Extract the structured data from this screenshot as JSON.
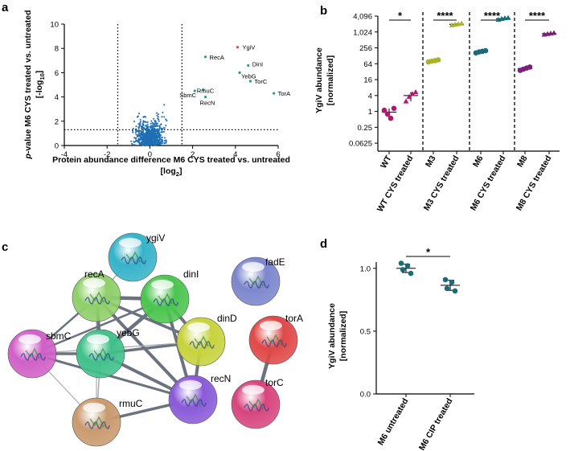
{
  "panel_letters": {
    "a": "a",
    "b": "b",
    "c": "c",
    "d": "d"
  },
  "chart_data": [
    {
      "id": "a",
      "type": "scatter",
      "title": "",
      "xlabel_line1": "Protein abundance difference M6 CYS treated vs. untreated",
      "xlabel_line2": "[log",
      "xlabel_sub": "2",
      "xlabel_close": "]",
      "ylabel_line1_italic": "p",
      "ylabel_line1_rest": "-value M6 CYS treated vs. untreated",
      "ylabel_line2": "[-log",
      "ylabel_sub": "10",
      "ylabel_close": "]",
      "xlim": [
        -4,
        6
      ],
      "ylim": [
        0,
        10
      ],
      "xticks": [
        "-4",
        "-2",
        "0",
        "2",
        "4",
        "6"
      ],
      "yticks": [
        "0",
        "2",
        "4",
        "6",
        "8",
        "10"
      ],
      "thresholds": {
        "x_left": -1.5,
        "x_right": 1.5,
        "y": 1.3
      },
      "bulk_color": "#1f6fb5",
      "labeled_points": [
        {
          "label": "YgiV",
          "x": 4.1,
          "y": 8.1,
          "color": "#e8453c"
        },
        {
          "label": "RecA",
          "x": 2.6,
          "y": 7.3,
          "color": "#1f9e8f"
        },
        {
          "label": "DinI",
          "x": 4.6,
          "y": 6.6,
          "color": "#1f9e8f"
        },
        {
          "label": "YebG",
          "x": 4.2,
          "y": 6.0,
          "color": "#1f9e8f"
        },
        {
          "label": "TorC",
          "x": 4.7,
          "y": 5.3,
          "color": "#1f9e8f"
        },
        {
          "label": "RmuC",
          "x": 2.5,
          "y": 4.6,
          "color": "#1f9e8f"
        },
        {
          "label": "SbmC",
          "x": 2.1,
          "y": 4.5,
          "color": "#1f9e8f"
        },
        {
          "label": "RecN",
          "x": 2.6,
          "y": 4.0,
          "color": "#1f9e8f"
        },
        {
          "label": "TorA",
          "x": 5.8,
          "y": 4.3,
          "color": "#1f9e8f"
        }
      ]
    },
    {
      "id": "b",
      "type": "scatter",
      "ylabel_line1": "YgiV abundance",
      "ylabel_line2": "[normalized]",
      "yscale": "log2",
      "ylim": [
        0.03125,
        4096
      ],
      "yticks": [
        {
          "label": "4,096",
          "value": 4096
        },
        {
          "label": "1,024",
          "value": 1024
        },
        {
          "label": "256",
          "value": 256
        },
        {
          "label": "64",
          "value": 64
        },
        {
          "label": "16",
          "value": 16
        },
        {
          "label": "4",
          "value": 4
        },
        {
          "label": "1",
          "value": 1
        },
        {
          "label": "0.25",
          "value": 0.25
        },
        {
          "label": "0.0625",
          "value": 0.0625
        }
      ],
      "categories": [
        "WT",
        "WT CYS treated",
        "M3",
        "M3 CYS treated",
        "M6",
        "M6 CYS treated",
        "M8",
        "M8 CYS treated"
      ],
      "groups": [
        {
          "name": "WT",
          "color": "#b0186e",
          "marker": "circle",
          "values": [
            1.1,
            0.8,
            0.55,
            1.3
          ]
        },
        {
          "name": "WT CYS treated",
          "color": "#b0186e",
          "marker": "triangle",
          "values": [
            2.4,
            3.6,
            4.6,
            5.4
          ]
        },
        {
          "name": "M3",
          "color": "#a9b22c",
          "marker": "circle",
          "values": [
            75,
            80,
            84,
            90
          ]
        },
        {
          "name": "M3 CYS treated",
          "color": "#a9b22c",
          "marker": "triangle",
          "values": [
            1850,
            1950,
            2050,
            2150
          ]
        },
        {
          "name": "M6",
          "color": "#1a6b79",
          "marker": "circle",
          "values": [
            165,
            180,
            190,
            200
          ]
        },
        {
          "name": "M6 CYS treated",
          "color": "#1a6b79",
          "marker": "triangle",
          "values": [
            3000,
            3200,
            3400,
            3500
          ]
        },
        {
          "name": "M8",
          "color": "#7a1f7a",
          "marker": "circle",
          "values": [
            36,
            40,
            44,
            48
          ]
        },
        {
          "name": "M8 CYS treated",
          "color": "#7a1f7a",
          "marker": "triangle",
          "values": [
            820,
            860,
            900,
            940
          ]
        }
      ],
      "significance": [
        {
          "pair": [
            0,
            1
          ],
          "label": "*"
        },
        {
          "pair": [
            2,
            3
          ],
          "label": "****"
        },
        {
          "pair": [
            4,
            5
          ],
          "label": "****"
        },
        {
          "pair": [
            6,
            7
          ],
          "label": "****"
        }
      ]
    },
    {
      "id": "d",
      "type": "scatter",
      "ylabel_line1": "YgiV abundance",
      "ylabel_line2": "[normalized]",
      "ylim": [
        0,
        1.05
      ],
      "yticks": [
        "0.0",
        "0.5",
        "1.0"
      ],
      "ytick_values": [
        0,
        0.5,
        1.0
      ],
      "categories": [
        "M6 untreated",
        "M6 CIP treated"
      ],
      "groups": [
        {
          "name": "M6 untreated",
          "color": "#1a6b79",
          "marker": "circle",
          "values": [
            1.04,
            1.02,
            0.99,
            0.96
          ],
          "mean": 1.0,
          "sd": 0.033
        },
        {
          "name": "M6 CIP treated",
          "color": "#1a6b79",
          "marker": "circle",
          "values": [
            0.91,
            0.89,
            0.84,
            0.82
          ],
          "mean": 0.865,
          "sd": 0.04
        }
      ],
      "significance": [
        {
          "pair": [
            0,
            1
          ],
          "label": "*"
        }
      ]
    }
  ],
  "network": {
    "nodes": [
      {
        "name": "ygiV",
        "color": "#36b3c9"
      },
      {
        "name": "recA",
        "color": "#8fcf6a"
      },
      {
        "name": "dinI",
        "color": "#4bc54f"
      },
      {
        "name": "fadE",
        "color": "#7c86cc"
      },
      {
        "name": "sbmC",
        "color": "#d060c7"
      },
      {
        "name": "yebG",
        "color": "#41c08a"
      },
      {
        "name": "dinD",
        "color": "#c7d33c"
      },
      {
        "name": "torA",
        "color": "#e04848"
      },
      {
        "name": "recN",
        "color": "#8a5ad8"
      },
      {
        "name": "torC",
        "color": "#d8457e"
      },
      {
        "name": "rmuC",
        "color": "#c99a6f"
      }
    ]
  }
}
